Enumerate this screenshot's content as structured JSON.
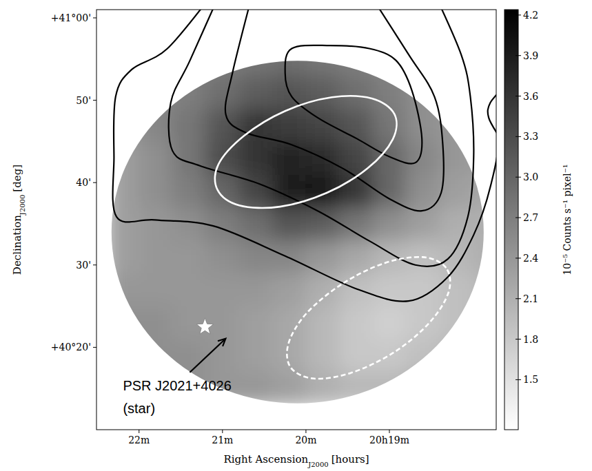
{
  "chart_data": {
    "type": "image",
    "x_label": {
      "text": "Right Ascension",
      "sub": "J2000",
      "unit": "[hours]"
    },
    "y_label": {
      "text": "Declination",
      "sub": "J2000",
      "unit": "[deg]"
    },
    "xlim": [
      22.51,
      17.72
    ],
    "xticks": [
      {
        "value": 22,
        "label": "22m"
      },
      {
        "value": 21,
        "label": "21m"
      },
      {
        "value": 20,
        "label": "20m"
      },
      {
        "value": 19,
        "label": "20h19m"
      }
    ],
    "ylim": [
      10,
      61
    ],
    "yticks": [
      {
        "value": 20,
        "label": "+40°20'"
      },
      {
        "value": 30,
        "label": "30'"
      },
      {
        "value": 40,
        "label": "40'"
      },
      {
        "value": 50,
        "label": "50'"
      },
      {
        "value": 60,
        "label": "+41°00'"
      }
    ],
    "image": {
      "ra_edges": [
        22.4,
        22.0,
        21.6,
        21.2,
        20.8,
        20.4,
        20.0,
        19.6,
        19.2,
        18.8,
        18.4,
        18.0,
        17.6
      ],
      "dec_edges": [
        13,
        17,
        21,
        25,
        29,
        33,
        37,
        41,
        45,
        49,
        53,
        57
      ],
      "cells": [
        [
          2.5,
          2.5,
          2.5,
          2.4,
          2.4,
          2.3,
          2.1,
          2.0,
          2.0,
          2.1,
          2.2,
          2.3
        ],
        [
          2.5,
          2.5,
          2.5,
          2.4,
          2.3,
          2.2,
          2.0,
          1.8,
          1.8,
          1.9,
          2.0,
          2.1
        ],
        [
          2.5,
          2.5,
          2.4,
          2.4,
          2.3,
          2.2,
          2.0,
          1.8,
          1.7,
          1.8,
          1.9,
          2.0
        ],
        [
          2.4,
          2.4,
          2.4,
          2.4,
          2.4,
          2.3,
          2.1,
          1.9,
          1.8,
          1.8,
          1.9,
          2.0
        ],
        [
          2.3,
          2.4,
          2.4,
          2.5,
          2.6,
          2.6,
          2.4,
          2.2,
          2.0,
          1.9,
          2.0,
          2.1
        ],
        [
          2.3,
          2.4,
          2.5,
          2.7,
          2.9,
          3.2,
          3.1,
          2.8,
          2.5,
          2.3,
          2.1,
          2.1
        ],
        [
          2.3,
          2.5,
          2.7,
          3.0,
          3.4,
          3.9,
          4.0,
          3.6,
          3.0,
          2.5,
          2.3,
          2.2
        ],
        [
          2.3,
          2.5,
          2.8,
          3.3,
          3.6,
          3.8,
          3.7,
          3.4,
          3.0,
          2.6,
          2.4,
          2.3
        ],
        [
          2.4,
          2.6,
          2.8,
          3.2,
          3.6,
          3.5,
          3.4,
          3.2,
          2.8,
          2.5,
          2.4,
          2.3
        ],
        [
          2.4,
          2.6,
          2.7,
          2.9,
          3.1,
          3.2,
          3.1,
          2.9,
          2.7,
          2.5,
          2.4,
          2.3
        ],
        [
          2.4,
          2.5,
          2.6,
          2.7,
          2.8,
          2.9,
          2.8,
          2.7,
          2.6,
          2.5,
          2.4,
          2.3
        ]
      ],
      "field": {
        "ra": 20.1,
        "dec": 34.0,
        "radius_ra": 2.23,
        "radius_dec": 20.8
      }
    },
    "colorbar": {
      "label": "10⁻⁵ Counts s⁻¹ pixel⁻¹",
      "range": [
        1.13,
        4.24
      ],
      "ticks": [
        1.5,
        1.8,
        2.1,
        2.4,
        2.7,
        {
          "value": 3,
          "label": "3.0"
        },
        3.3,
        3.6,
        3.9,
        4.2
      ]
    },
    "contours": [
      {
        "color": "#000000",
        "ra": [
          21.11,
          21.66,
          22.09,
          22.28,
          22.3,
          22.27,
          21.81,
          21.11,
          20.25,
          19.39,
          18.77,
          18.3,
          17.99,
          17.79,
          17.67,
          17.6
        ],
        "dec": [
          63,
          56.28,
          53.72,
          50.44,
          43.14,
          35.84,
          35.47,
          34.74,
          31.09,
          27.08,
          25.62,
          28.54,
          33.65,
          39.49,
          46.79,
          63
        ]
      },
      {
        "color": "#000000",
        "ra": [
          21.03,
          21.39,
          21.62,
          21.6,
          21.27,
          20.56,
          19.86,
          19.24,
          18.69,
          18.3,
          18.06,
          17.99,
          18.03,
          18.14,
          18.46
        ],
        "dec": [
          63,
          54.82,
          49.71,
          43.87,
          42.04,
          39.85,
          36.57,
          32.92,
          30.0,
          30.73,
          35.84,
          43.14,
          50.44,
          55.55,
          63
        ]
      },
      {
        "color": "#000000",
        "ra": [
          20.64,
          20.88,
          20.96,
          20.72,
          20.17,
          19.55,
          19.0,
          18.61,
          18.38,
          18.36,
          18.46,
          18.77,
          19.24
        ],
        "dec": [
          63,
          53.36,
          48.25,
          46.06,
          44.6,
          41.68,
          38.03,
          36.57,
          38.76,
          44.6,
          50.44,
          55.55,
          63
        ]
      },
      {
        "color": "#000000",
        "ra": [
          20.17,
          20.25,
          20.17,
          19.86,
          19.39,
          19.0,
          18.69,
          18.61,
          18.73,
          18.92,
          19.24,
          19.71,
          20.17
        ],
        "dec": [
          56.28,
          53.36,
          50.44,
          47.88,
          45.33,
          43.14,
          42.41,
          45.33,
          51.17,
          54.82,
          56.28,
          56.64,
          56.28
        ]
      },
      {
        "color": "#000000",
        "ra": [
          17.6,
          17.79,
          17.81,
          17.67
        ],
        "dec": [
          51.9,
          49.71,
          47.88,
          45.33
        ]
      }
    ],
    "regions": [
      {
        "color": "#ffffff",
        "line_style": "solid",
        "ra": [
          18.94,
          19.21,
          19.69,
          20.25,
          20.74,
          21.05,
          21.06,
          20.8,
          20.31,
          19.75,
          19.26,
          18.96,
          18.94
        ],
        "dec": [
          48.32,
          50.22,
          50.36,
          48.69,
          45.69,
          42.19,
          39.12,
          37.23,
          37.08,
          38.76,
          41.75,
          45.26,
          48.32
        ]
      },
      {
        "color": "#ffffff",
        "line_style": "dashed",
        "ra": [
          18.32,
          18.6,
          19.06,
          19.56,
          19.99,
          20.21,
          20.18,
          19.9,
          19.45,
          18.94,
          18.52,
          18.29,
          18.32
        ],
        "dec": [
          29.64,
          30.95,
          30.22,
          27.74,
          24.16,
          20.44,
          17.52,
          16.2,
          16.93,
          19.42,
          22.99,
          26.72,
          29.64
        ]
      }
    ],
    "source": {
      "label": [
        "PSR J2021+4026",
        "(star)"
      ],
      "ra": 21.21,
      "dec": 22.48,
      "marker": "star",
      "color": "#ffffff"
    }
  }
}
